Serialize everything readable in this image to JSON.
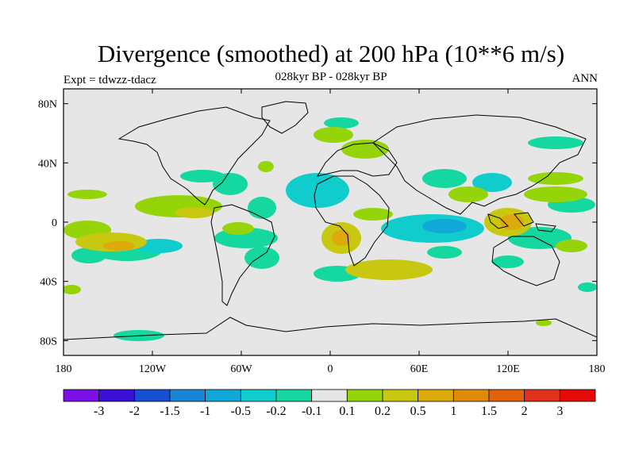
{
  "title": "Divergence (smoothed) at 200 hPa (10**6 m/s)",
  "subtitle_left": "Expt = tdwzz-tdacz",
  "subtitle_center": "028kyr BP - 028kyr BP",
  "subtitle_right": "ANN",
  "map": {
    "background_color": "#e6e6e6",
    "lon_ticks": [
      {
        "lon": -180,
        "label": "180"
      },
      {
        "lon": -120,
        "label": "120W"
      },
      {
        "lon": -60,
        "label": "60W"
      },
      {
        "lon": 0,
        "label": "0"
      },
      {
        "lon": 60,
        "label": "60E"
      },
      {
        "lon": 120,
        "label": "120E"
      },
      {
        "lon": 180,
        "label": "180"
      }
    ],
    "lat_ticks": [
      {
        "lat": 80,
        "label": "80N"
      },
      {
        "lat": 40,
        "label": "40N"
      },
      {
        "lat": 0,
        "label": "0"
      },
      {
        "lat": -40,
        "label": "40S"
      },
      {
        "lat": -80,
        "label": "80S"
      }
    ]
  },
  "colorbar": {
    "colors": [
      "#7a0fe6",
      "#3a10d8",
      "#1650d0",
      "#1a84d6",
      "#10a8d8",
      "#10cccc",
      "#14d8a0",
      "#e6e6e6",
      "#96d40a",
      "#c8c810",
      "#dcaa0a",
      "#e08a0a",
      "#e0620a",
      "#e0321a",
      "#e40a0a"
    ],
    "labels": [
      "-3",
      "-2",
      "-1.5",
      "-1",
      "-0.5",
      "-0.2",
      "-0.1",
      "0.1",
      "0.2",
      "0.5",
      "1",
      "1.5",
      "2",
      "3"
    ]
  }
}
